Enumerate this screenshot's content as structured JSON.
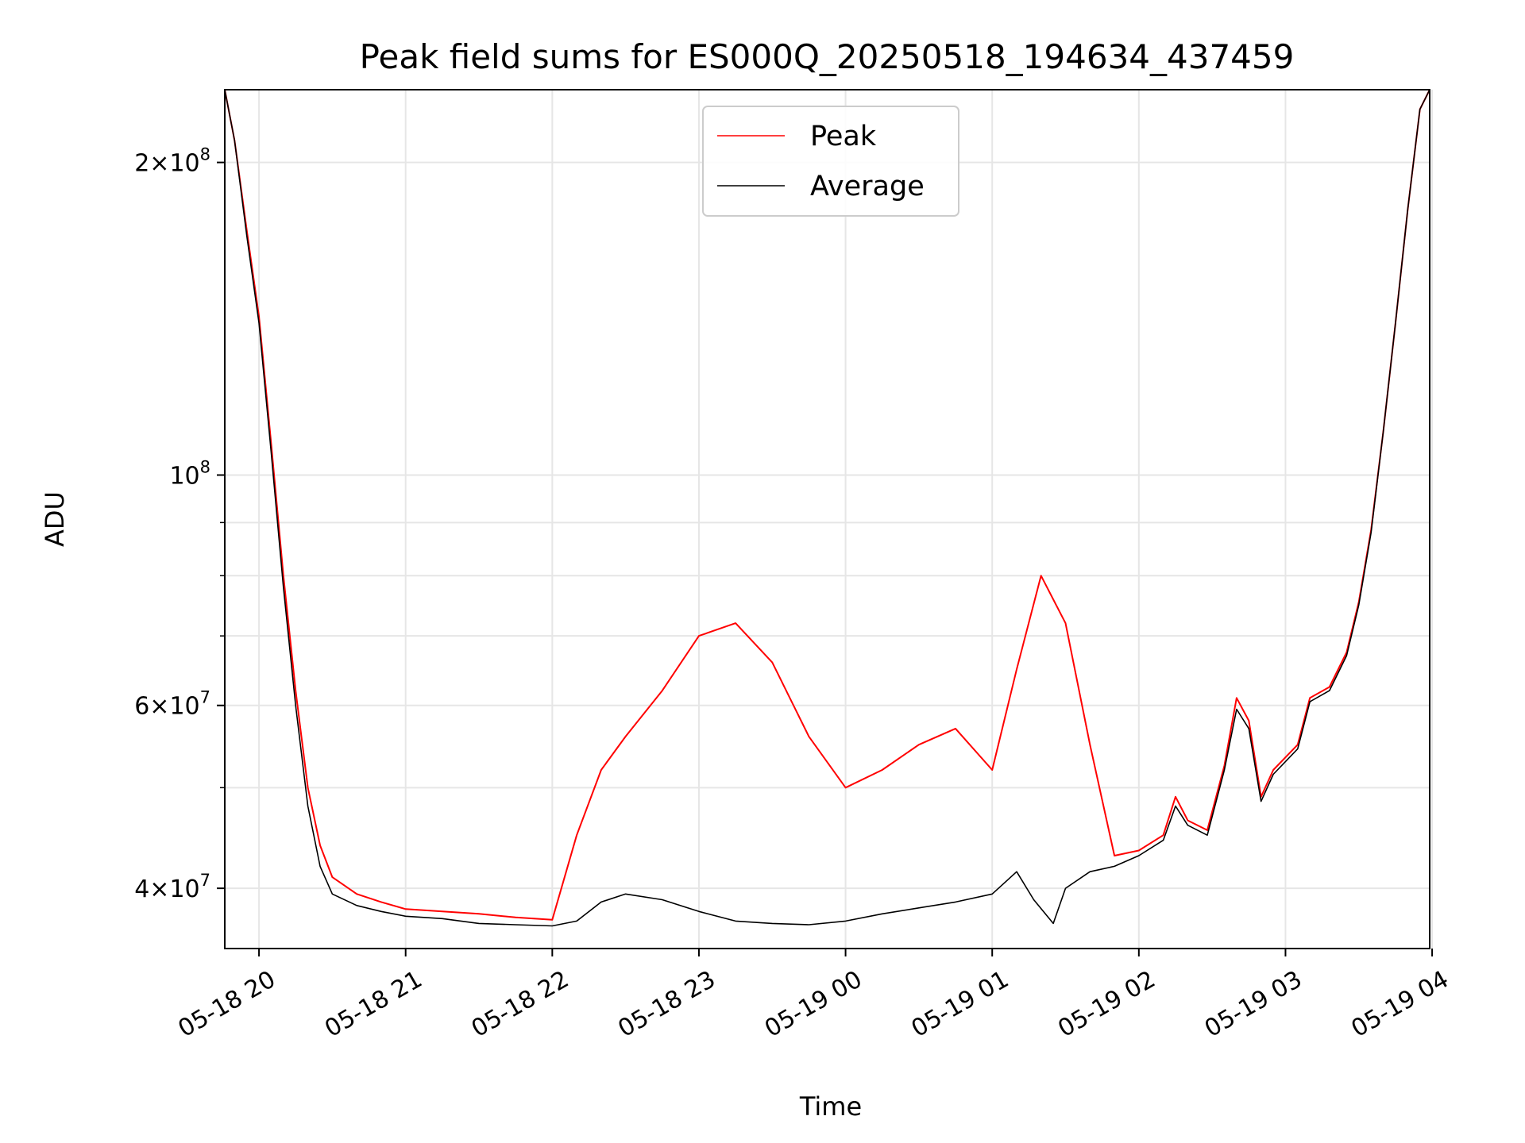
{
  "chart_data": {
    "type": "line",
    "title": "Peak field sums for ES000Q_20250518_194634_437459",
    "xlabel": "Time",
    "ylabel": "ADU",
    "y_scale": "log",
    "ylim": [
      35000000,
      235000000
    ],
    "xlim": [
      "05-18 19:46",
      "05-19 03:59"
    ],
    "grid": true,
    "legend_position": "top-center",
    "x_ticks": [
      {
        "value": "05-18 20:00",
        "label": "05-18 20"
      },
      {
        "value": "05-18 21:00",
        "label": "05-18 21"
      },
      {
        "value": "05-18 22:00",
        "label": "05-18 22"
      },
      {
        "value": "05-18 23:00",
        "label": "05-18 23"
      },
      {
        "value": "05-19 00:00",
        "label": "05-19 00"
      },
      {
        "value": "05-19 01:00",
        "label": "05-19 01"
      },
      {
        "value": "05-19 02:00",
        "label": "05-19 02"
      },
      {
        "value": "05-19 03:00",
        "label": "05-19 03"
      },
      {
        "value": "05-19 04:00",
        "label": "05-19 04"
      }
    ],
    "y_major_ticks": [
      {
        "value": 40000000,
        "mantissa": "4",
        "exp": "7"
      },
      {
        "value": 60000000,
        "mantissa": "6",
        "exp": "7"
      },
      {
        "value": 100000000,
        "mantissa": "",
        "exp": "8"
      },
      {
        "value": 200000000,
        "mantissa": "2",
        "exp": "8"
      }
    ],
    "y_minor_ticks": [
      50000000,
      70000000,
      80000000,
      90000000
    ],
    "series": [
      {
        "name": "Average",
        "color": "#000000",
        "points": [
          [
            "05-18 19:46",
            235000000
          ],
          [
            "05-18 19:50",
            210000000
          ],
          [
            "05-18 19:55",
            170000000
          ],
          [
            "05-18 20:00",
            140000000
          ],
          [
            "05-18 20:05",
            105000000
          ],
          [
            "05-18 20:10",
            78000000
          ],
          [
            "05-18 20:15",
            60000000
          ],
          [
            "05-18 20:20",
            48000000
          ],
          [
            "05-18 20:25",
            42000000
          ],
          [
            "05-18 20:30",
            39500000
          ],
          [
            "05-18 20:40",
            38500000
          ],
          [
            "05-18 20:50",
            38000000
          ],
          [
            "05-18 21:00",
            37600000
          ],
          [
            "05-18 21:15",
            37400000
          ],
          [
            "05-18 21:30",
            37000000
          ],
          [
            "05-18 21:45",
            36900000
          ],
          [
            "05-18 22:00",
            36800000
          ],
          [
            "05-18 22:10",
            37200000
          ],
          [
            "05-18 22:20",
            38800000
          ],
          [
            "05-18 22:30",
            39500000
          ],
          [
            "05-18 22:45",
            39000000
          ],
          [
            "05-18 23:00",
            38000000
          ],
          [
            "05-18 23:15",
            37200000
          ],
          [
            "05-18 23:30",
            37000000
          ],
          [
            "05-18 23:45",
            36900000
          ],
          [
            "05-19 00:00",
            37200000
          ],
          [
            "05-19 00:15",
            37800000
          ],
          [
            "05-19 00:30",
            38300000
          ],
          [
            "05-19 00:45",
            38800000
          ],
          [
            "05-19 01:00",
            39500000
          ],
          [
            "05-19 01:10",
            41500000
          ],
          [
            "05-19 01:17",
            39000000
          ],
          [
            "05-19 01:25",
            37000000
          ],
          [
            "05-19 01:30",
            40000000
          ],
          [
            "05-19 01:40",
            41500000
          ],
          [
            "05-19 01:50",
            42000000
          ],
          [
            "05-19 02:00",
            43000000
          ],
          [
            "05-19 02:10",
            44500000
          ],
          [
            "05-19 02:15",
            48000000
          ],
          [
            "05-19 02:20",
            46000000
          ],
          [
            "05-19 02:28",
            45000000
          ],
          [
            "05-19 02:35",
            52000000
          ],
          [
            "05-19 02:40",
            59500000
          ],
          [
            "05-19 02:45",
            57000000
          ],
          [
            "05-19 02:50",
            48500000
          ],
          [
            "05-19 02:55",
            51500000
          ],
          [
            "05-19 03:05",
            54500000
          ],
          [
            "05-19 03:10",
            60500000
          ],
          [
            "05-19 03:18",
            62000000
          ],
          [
            "05-19 03:25",
            67000000
          ],
          [
            "05-19 03:30",
            75000000
          ],
          [
            "05-19 03:35",
            88000000
          ],
          [
            "05-19 03:40",
            110000000
          ],
          [
            "05-19 03:45",
            140000000
          ],
          [
            "05-19 03:50",
            180000000
          ],
          [
            "05-19 03:55",
            225000000
          ],
          [
            "05-19 03:59",
            235000000
          ]
        ]
      },
      {
        "name": "Peak",
        "color": "#ff0000",
        "points": [
          [
            "05-18 19:46",
            235000000
          ],
          [
            "05-18 19:50",
            210000000
          ],
          [
            "05-18 19:55",
            172000000
          ],
          [
            "05-18 20:00",
            142000000
          ],
          [
            "05-18 20:05",
            107000000
          ],
          [
            "05-18 20:10",
            80000000
          ],
          [
            "05-18 20:15",
            62000000
          ],
          [
            "05-18 20:20",
            50000000
          ],
          [
            "05-18 20:25",
            44000000
          ],
          [
            "05-18 20:30",
            41000000
          ],
          [
            "05-18 20:40",
            39500000
          ],
          [
            "05-18 20:50",
            38800000
          ],
          [
            "05-18 21:00",
            38200000
          ],
          [
            "05-18 21:15",
            38000000
          ],
          [
            "05-18 21:30",
            37800000
          ],
          [
            "05-18 21:45",
            37500000
          ],
          [
            "05-18 22:00",
            37300000
          ],
          [
            "05-18 22:10",
            45000000
          ],
          [
            "05-18 22:20",
            52000000
          ],
          [
            "05-18 22:30",
            56000000
          ],
          [
            "05-18 22:45",
            62000000
          ],
          [
            "05-18 23:00",
            70000000
          ],
          [
            "05-18 23:15",
            72000000
          ],
          [
            "05-18 23:30",
            66000000
          ],
          [
            "05-18 23:45",
            56000000
          ],
          [
            "05-19 00:00",
            50000000
          ],
          [
            "05-19 00:15",
            52000000
          ],
          [
            "05-19 00:30",
            55000000
          ],
          [
            "05-19 00:45",
            57000000
          ],
          [
            "05-19 01:00",
            52000000
          ],
          [
            "05-19 01:10",
            65000000
          ],
          [
            "05-19 01:20",
            80000000
          ],
          [
            "05-19 01:30",
            72000000
          ],
          [
            "05-19 01:40",
            55000000
          ],
          [
            "05-19 01:50",
            43000000
          ],
          [
            "05-19 02:00",
            43500000
          ],
          [
            "05-19 02:10",
            45000000
          ],
          [
            "05-19 02:15",
            49000000
          ],
          [
            "05-19 02:20",
            46500000
          ],
          [
            "05-19 02:28",
            45500000
          ],
          [
            "05-19 02:35",
            52500000
          ],
          [
            "05-19 02:40",
            61000000
          ],
          [
            "05-19 02:45",
            58000000
          ],
          [
            "05-19 02:50",
            49000000
          ],
          [
            "05-19 02:55",
            52000000
          ],
          [
            "05-19 03:05",
            55000000
          ],
          [
            "05-19 03:10",
            61000000
          ],
          [
            "05-19 03:18",
            62500000
          ],
          [
            "05-19 03:25",
            67500000
          ],
          [
            "05-19 03:30",
            75500000
          ],
          [
            "05-19 03:35",
            88500000
          ],
          [
            "05-19 03:40",
            110000000
          ],
          [
            "05-19 03:45",
            140000000
          ],
          [
            "05-19 03:50",
            180000000
          ],
          [
            "05-19 03:55",
            225000000
          ],
          [
            "05-19 03:59",
            235000000
          ]
        ]
      }
    ]
  }
}
